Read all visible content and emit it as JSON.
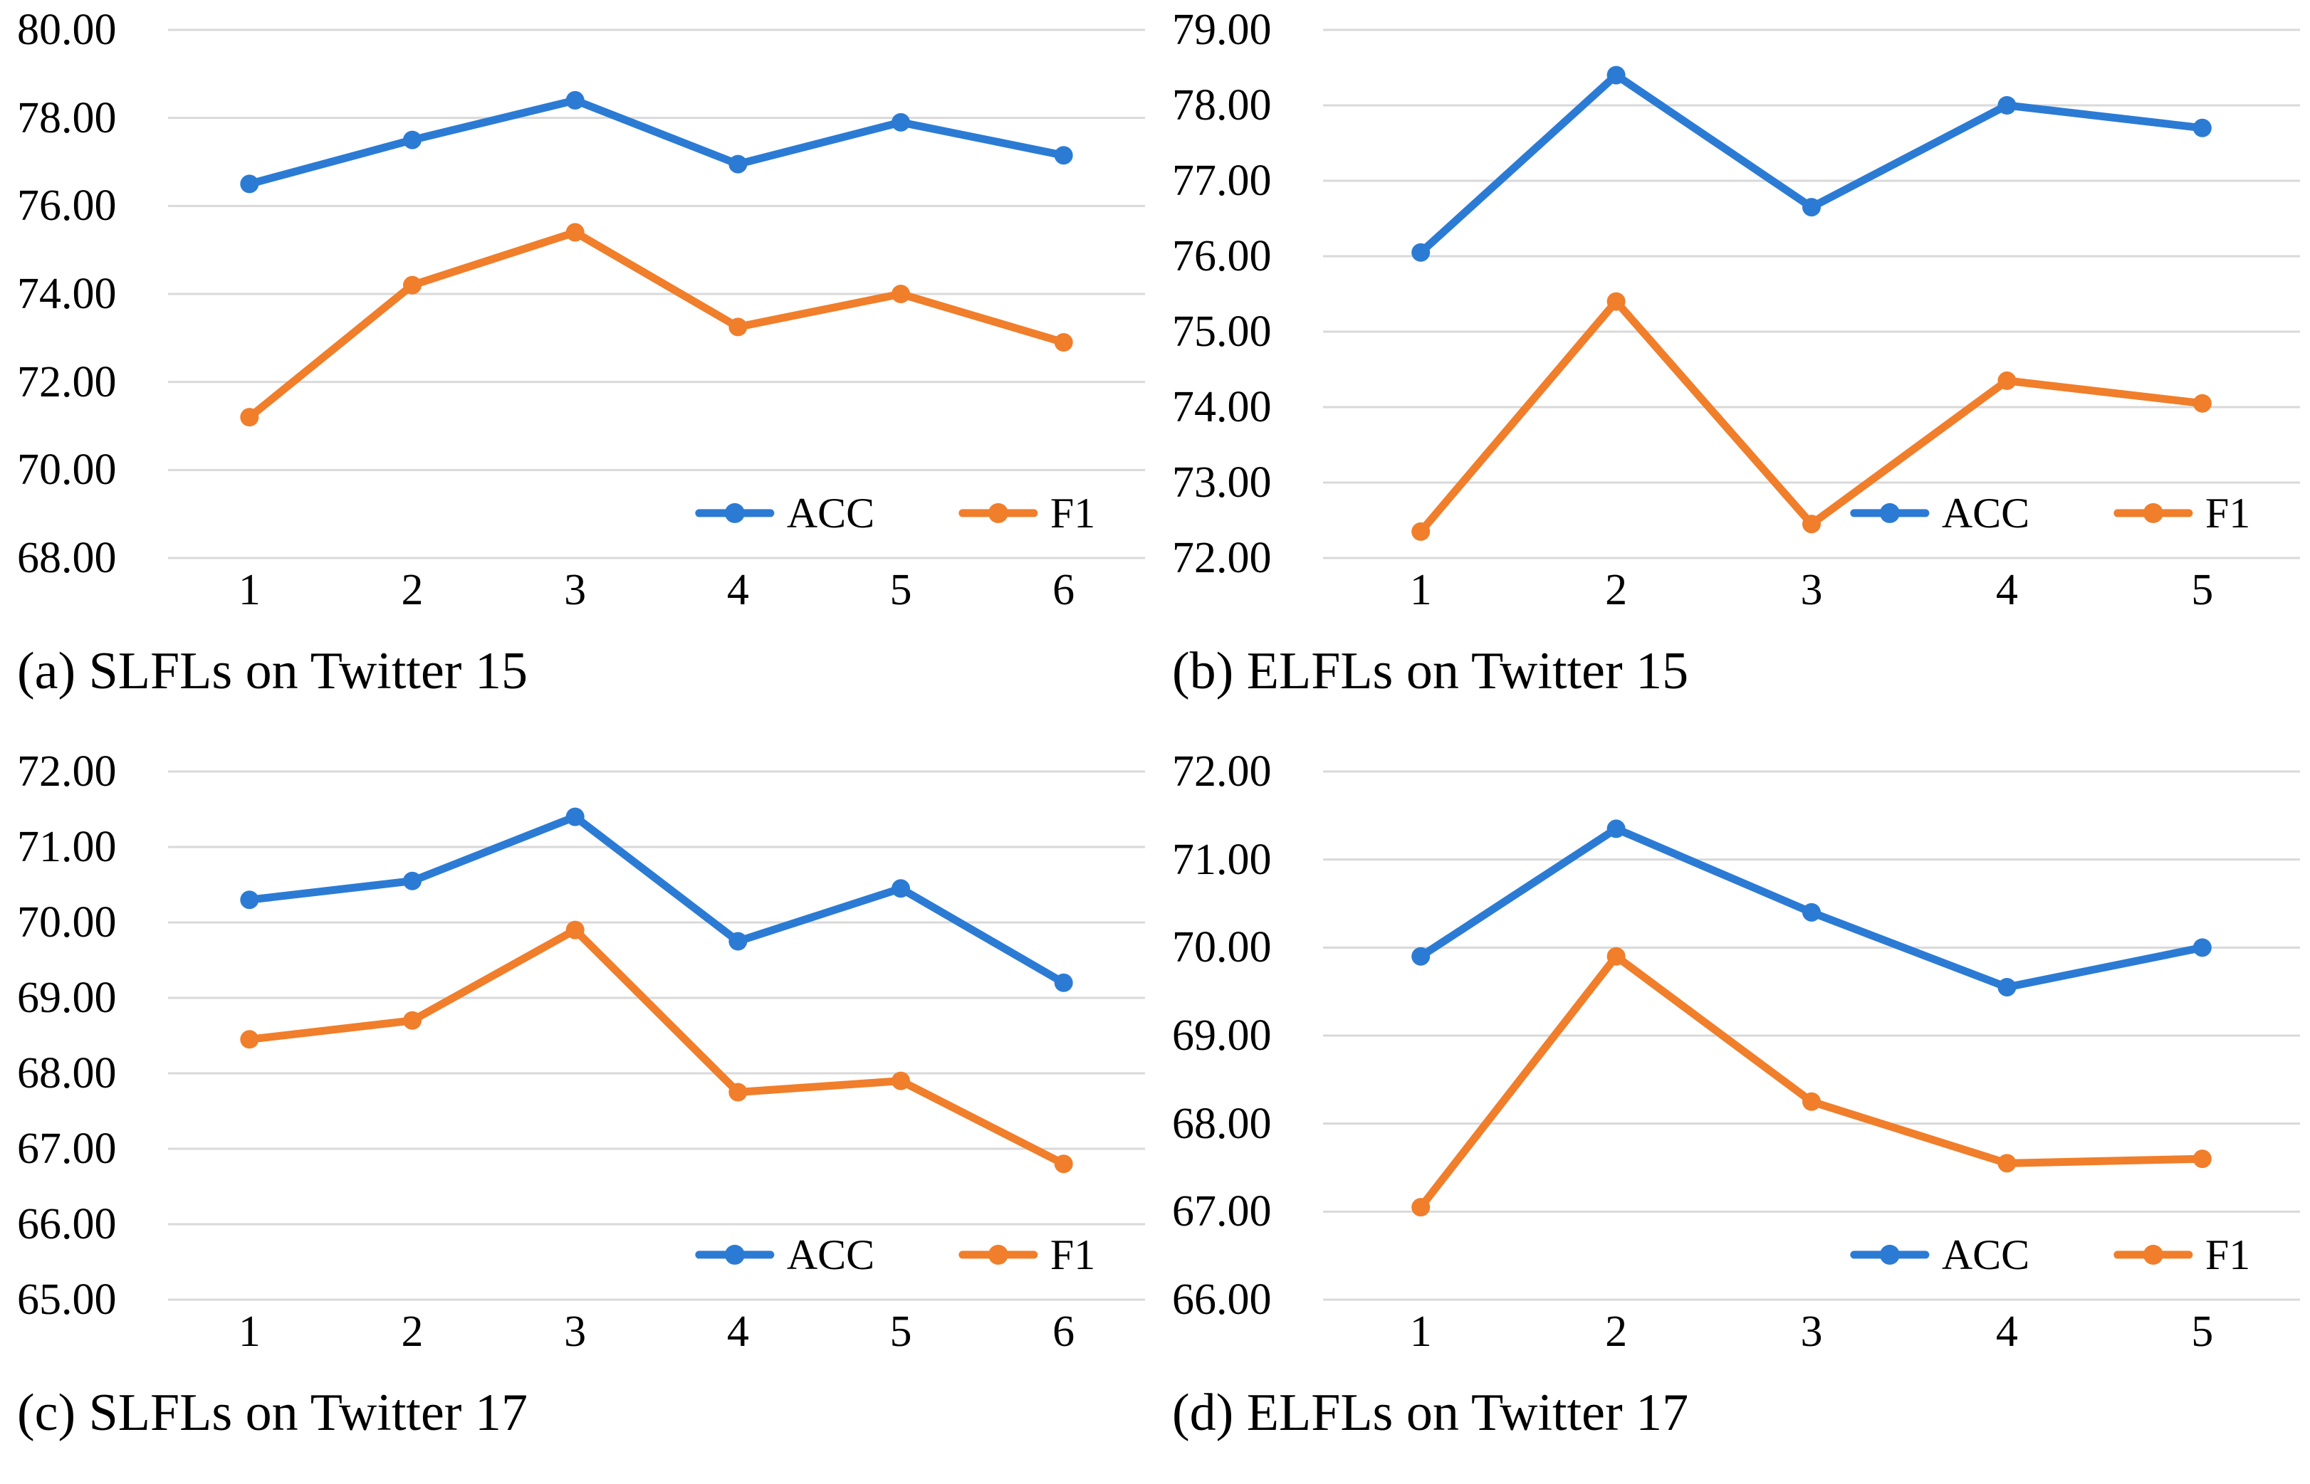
{
  "colors": {
    "acc": "#2B7BD4",
    "f1": "#F07E2B",
    "grid": "#D9D9D9",
    "text": "#000000",
    "background": "#FFFFFF"
  },
  "chart_data": [
    {
      "id": "a",
      "type": "line",
      "title": "(a) SLFLs on Twitter 15",
      "xlabel": "",
      "ylabel": "",
      "categories": [
        "1",
        "2",
        "3",
        "4",
        "5",
        "6"
      ],
      "ylim": [
        68,
        80
      ],
      "ystep": 2,
      "ytick_labels": [
        "80.00",
        "78.00",
        "76.00",
        "74.00",
        "72.00",
        "70.00",
        "68.00"
      ],
      "grid": true,
      "legend_position": "inside-bottom-right",
      "series": [
        {
          "name": "ACC",
          "color_key": "acc",
          "values": [
            76.5,
            77.5,
            78.4,
            76.95,
            77.9,
            77.15
          ]
        },
        {
          "name": "F1",
          "color_key": "f1",
          "values": [
            71.2,
            74.2,
            75.4,
            73.25,
            74.0,
            72.9
          ]
        }
      ]
    },
    {
      "id": "b",
      "type": "line",
      "title": "(b) ELFLs on Twitter 15",
      "xlabel": "",
      "ylabel": "",
      "categories": [
        "1",
        "2",
        "3",
        "4",
        "5"
      ],
      "ylim": [
        72,
        79
      ],
      "ystep": 1,
      "ytick_labels": [
        "79.00",
        "78.00",
        "77.00",
        "76.00",
        "75.00",
        "74.00",
        "73.00",
        "72.00"
      ],
      "grid": true,
      "legend_position": "inside-bottom-right",
      "series": [
        {
          "name": "ACC",
          "color_key": "acc",
          "values": [
            76.05,
            78.4,
            76.65,
            78.0,
            77.7
          ]
        },
        {
          "name": "F1",
          "color_key": "f1",
          "values": [
            72.35,
            75.4,
            72.45,
            74.35,
            74.05
          ]
        }
      ]
    },
    {
      "id": "c",
      "type": "line",
      "title": "(c) SLFLs on Twitter 17",
      "xlabel": "",
      "ylabel": "",
      "categories": [
        "1",
        "2",
        "3",
        "4",
        "5",
        "6"
      ],
      "ylim": [
        65,
        72
      ],
      "ystep": 1,
      "ytick_labels": [
        "72.00",
        "71.00",
        "70.00",
        "69.00",
        "68.00",
        "67.00",
        "66.00",
        "65.00"
      ],
      "grid": true,
      "legend_position": "inside-bottom-right",
      "series": [
        {
          "name": "ACC",
          "color_key": "acc",
          "values": [
            70.3,
            70.55,
            71.4,
            69.75,
            70.45,
            69.2
          ]
        },
        {
          "name": "F1",
          "color_key": "f1",
          "values": [
            68.45,
            68.7,
            69.9,
            67.75,
            67.9,
            66.8
          ]
        }
      ]
    },
    {
      "id": "d",
      "type": "line",
      "title": "(d) ELFLs on Twitter 17",
      "xlabel": "",
      "ylabel": "",
      "categories": [
        "1",
        "2",
        "3",
        "4",
        "5"
      ],
      "ylim": [
        66,
        72
      ],
      "ystep": 1,
      "ytick_labels": [
        "72.00",
        "71.00",
        "70.00",
        "69.00",
        "68.00",
        "67.00",
        "66.00"
      ],
      "grid": true,
      "legend_position": "inside-bottom-right",
      "series": [
        {
          "name": "ACC",
          "color_key": "acc",
          "values": [
            69.9,
            71.35,
            70.4,
            69.55,
            70.0
          ]
        },
        {
          "name": "F1",
          "color_key": "f1",
          "values": [
            67.05,
            69.9,
            68.25,
            67.55,
            67.6
          ]
        }
      ]
    }
  ]
}
